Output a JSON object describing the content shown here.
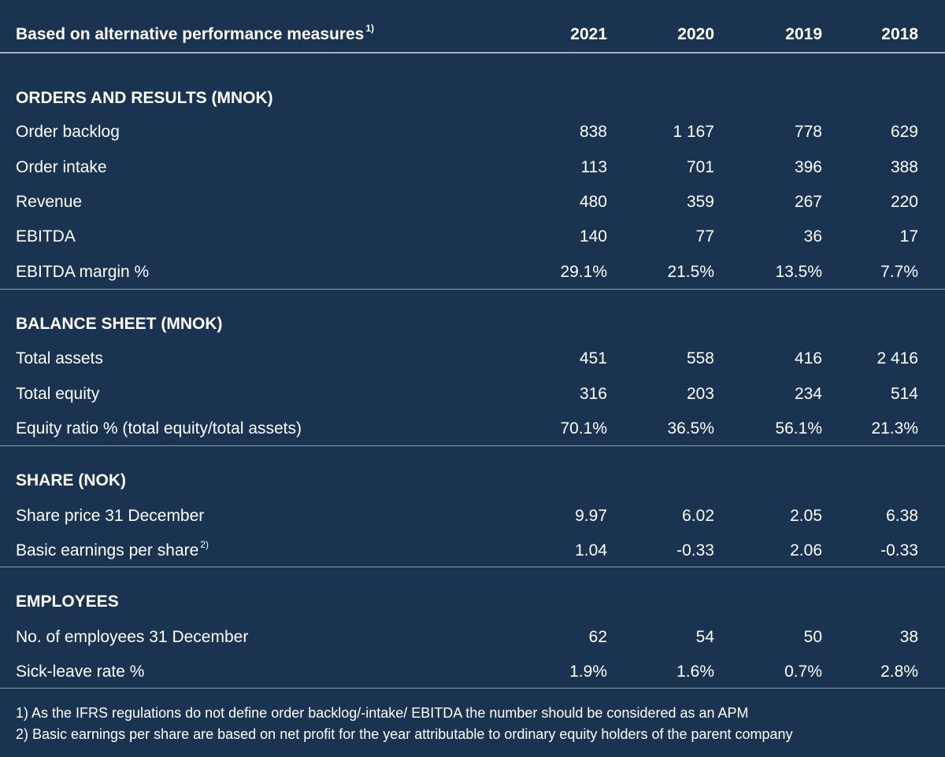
{
  "header": {
    "label": "Based on alternative performance measures",
    "label_note": "1)",
    "years": [
      "2021",
      "2020",
      "2019",
      "2018"
    ]
  },
  "sections": [
    {
      "title": "ORDERS AND RESULTS (MNOK)",
      "rows": [
        {
          "label": "Order backlog",
          "note": "",
          "values": [
            "838",
            "1 167",
            "778",
            "629"
          ]
        },
        {
          "label": "Order intake",
          "note": "",
          "values": [
            "113",
            "701",
            "396",
            "388"
          ]
        },
        {
          "label": "Revenue",
          "note": "",
          "values": [
            "480",
            "359",
            "267",
            "220"
          ]
        },
        {
          "label": "EBITDA",
          "note": "",
          "values": [
            "140",
            "77",
            "36",
            "17"
          ]
        },
        {
          "label": "EBITDA margin %",
          "note": "",
          "values": [
            "29.1%",
            "21.5%",
            "13.5%",
            "7.7%"
          ]
        }
      ]
    },
    {
      "title": "BALANCE SHEET (MNOK)",
      "rows": [
        {
          "label": "Total assets",
          "note": "",
          "values": [
            "451",
            "558",
            "416",
            "2 416"
          ]
        },
        {
          "label": "Total equity",
          "note": "",
          "values": [
            "316",
            "203",
            "234",
            "514"
          ]
        },
        {
          "label": "Equity ratio % (total equity/total assets)",
          "note": "",
          "values": [
            "70.1%",
            "36.5%",
            "56.1%",
            "21.3%"
          ]
        }
      ]
    },
    {
      "title": "SHARE (NOK)",
      "rows": [
        {
          "label": "Share price 31 December",
          "note": "",
          "values": [
            "9.97",
            "6.02",
            "2.05",
            "6.38"
          ]
        },
        {
          "label": "Basic earnings per share",
          "note": "2)",
          "values": [
            "1.04",
            "-0.33",
            "2.06",
            "-0.33"
          ]
        }
      ]
    },
    {
      "title": "EMPLOYEES",
      "rows": [
        {
          "label": "No. of employees 31 December",
          "note": "",
          "values": [
            "62",
            "54",
            "50",
            "38"
          ]
        },
        {
          "label": "Sick-leave rate %",
          "note": "",
          "values": [
            "1.9%",
            "1.6%",
            "0.7%",
            "2.8%"
          ]
        }
      ]
    }
  ],
  "footnotes": [
    "1) As the IFRS regulations do not define order backlog/-intake/ EBITDA the number should be considered as an APM",
    "2) Basic earnings per share are based on net profit for the year attributable to ordinary equity holders of the parent company"
  ],
  "colors": {
    "background": "#1a3350",
    "text": "#ffffff",
    "rule": "#8a9bb0"
  }
}
